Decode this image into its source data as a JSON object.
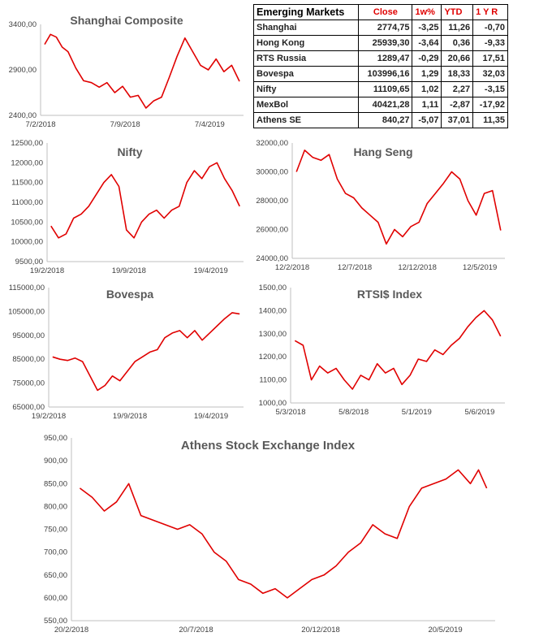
{
  "table": {
    "title": "Emerging Markets",
    "headers": [
      "Close",
      "1w%",
      "YTD",
      "1 Y R"
    ],
    "rows": [
      {
        "name": "Shanghai",
        "close": "2774,75",
        "w1": "-3,25",
        "ytd": "11,26",
        "y1": "-0,70"
      },
      {
        "name": "Hong Kong",
        "close": "25939,30",
        "w1": "-3,64",
        "ytd": "0,36",
        "y1": "-9,33"
      },
      {
        "name": "RTS Russia",
        "close": "1289,47",
        "w1": "-0,29",
        "ytd": "20,66",
        "y1": "17,51"
      },
      {
        "name": "Bovespa",
        "close": "103996,16",
        "w1": "1,29",
        "ytd": "18,33",
        "y1": "32,03"
      },
      {
        "name": "Nifty",
        "close": "11109,65",
        "w1": "1,02",
        "ytd": "2,27",
        "y1": "-3,15"
      },
      {
        "name": "MexBol",
        "close": "40421,28",
        "w1": "1,11",
        "ytd": "-2,87",
        "y1": "-17,92"
      },
      {
        "name": "Athens SE",
        "close": "840,27",
        "w1": "-5,07",
        "ytd": "37,01",
        "y1": "11,35"
      }
    ]
  },
  "colors": {
    "series": "#e00000",
    "axis": "#bfbfbf",
    "title": "#595959"
  },
  "chart_data": [
    {
      "type": "line",
      "title": "Shanghai Composite",
      "ylim": [
        2400,
        3400
      ],
      "yticks": [
        "2400,00",
        "2900,00",
        "3400,00"
      ],
      "xticks": [
        "7/2/2018",
        "7/9/2018",
        "7/4/2019"
      ],
      "series": [
        {
          "x_fraction": [
            0,
            0.03,
            0.06,
            0.09,
            0.12,
            0.16,
            0.2,
            0.24,
            0.28,
            0.32,
            0.36,
            0.4,
            0.44,
            0.48,
            0.52,
            0.56,
            0.6,
            0.64,
            0.68,
            0.72,
            0.76,
            0.8,
            0.84,
            0.88,
            0.92,
            0.96,
            1.0
          ],
          "values": [
            3180,
            3290,
            3260,
            3150,
            3100,
            2920,
            2780,
            2760,
            2710,
            2760,
            2650,
            2720,
            2600,
            2620,
            2480,
            2560,
            2600,
            2820,
            3050,
            3250,
            3100,
            2950,
            2900,
            3020,
            2880,
            2950,
            2774
          ]
        }
      ]
    },
    {
      "type": "line",
      "title": "Nifty",
      "ylim": [
        9500,
        12500
      ],
      "yticks": [
        "9500,00",
        "10000,00",
        "10500,00",
        "11000,00",
        "11500,00",
        "12000,00",
        "12500,00"
      ],
      "xticks": [
        "19/2/2018",
        "19/9/2018",
        "19/4/2019"
      ],
      "series": [
        {
          "x_fraction": [
            0,
            0.04,
            0.08,
            0.12,
            0.16,
            0.2,
            0.24,
            0.28,
            0.32,
            0.36,
            0.4,
            0.44,
            0.48,
            0.52,
            0.56,
            0.6,
            0.64,
            0.68,
            0.72,
            0.76,
            0.8,
            0.84,
            0.88,
            0.92,
            0.96,
            1.0
          ],
          "values": [
            10400,
            10100,
            10200,
            10600,
            10700,
            10900,
            11200,
            11500,
            11700,
            11400,
            10300,
            10100,
            10500,
            10700,
            10800,
            10600,
            10800,
            10900,
            11500,
            11800,
            11600,
            11900,
            12000,
            11600,
            11300,
            10900
          ]
        }
      ]
    },
    {
      "type": "line",
      "title": "Hang Seng",
      "ylim": [
        24000,
        32000
      ],
      "yticks": [
        "24000,00",
        "26000,00",
        "28000,00",
        "30000,00",
        "32000,00"
      ],
      "xticks": [
        "12/2/2018",
        "12/7/2018",
        "12/12/2018",
        "12/5/2019"
      ],
      "series": [
        {
          "x_fraction": [
            0,
            0.04,
            0.08,
            0.12,
            0.16,
            0.2,
            0.24,
            0.28,
            0.32,
            0.36,
            0.4,
            0.44,
            0.48,
            0.52,
            0.56,
            0.6,
            0.64,
            0.68,
            0.72,
            0.76,
            0.8,
            0.84,
            0.88,
            0.92,
            0.96,
            1.0
          ],
          "values": [
            30000,
            31500,
            31000,
            30800,
            31200,
            29500,
            28500,
            28200,
            27500,
            27000,
            26500,
            25000,
            26000,
            25500,
            26200,
            26500,
            27800,
            28500,
            29200,
            30000,
            29500,
            28000,
            27000,
            28500,
            28700,
            25939
          ]
        }
      ]
    },
    {
      "type": "line",
      "title": "Bovespa",
      "ylim": [
        65000,
        115000
      ],
      "yticks": [
        "65000,00",
        "75000,00",
        "85000,00",
        "95000,00",
        "105000,00",
        "115000,00"
      ],
      "xticks": [
        "19/2/2018",
        "19/9/2018",
        "19/4/2019"
      ],
      "series": [
        {
          "x_fraction": [
            0,
            0.04,
            0.08,
            0.12,
            0.16,
            0.2,
            0.24,
            0.28,
            0.32,
            0.36,
            0.4,
            0.44,
            0.48,
            0.52,
            0.56,
            0.6,
            0.64,
            0.68,
            0.72,
            0.76,
            0.8,
            0.84,
            0.88,
            0.92,
            0.96,
            1.0
          ],
          "values": [
            86000,
            85000,
            84500,
            85500,
            84000,
            78000,
            72000,
            74000,
            78000,
            76000,
            80000,
            84000,
            86000,
            88000,
            89000,
            94000,
            96000,
            97000,
            94000,
            97000,
            93000,
            96000,
            99000,
            102000,
            104500,
            103996
          ]
        }
      ]
    },
    {
      "type": "line",
      "title": "RTSI$ Index",
      "ylim": [
        1000,
        1500
      ],
      "yticks": [
        "1000,00",
        "1100,00",
        "1200,00",
        "1300,00",
        "1400,00",
        "1500,00"
      ],
      "xticks": [
        "5/3/2018",
        "5/8/2018",
        "5/1/2019",
        "5/6/2019"
      ],
      "series": [
        {
          "x_fraction": [
            0,
            0.04,
            0.08,
            0.12,
            0.16,
            0.2,
            0.24,
            0.28,
            0.32,
            0.36,
            0.4,
            0.44,
            0.48,
            0.52,
            0.56,
            0.6,
            0.64,
            0.68,
            0.72,
            0.76,
            0.8,
            0.84,
            0.88,
            0.92,
            0.96,
            1.0
          ],
          "values": [
            1270,
            1250,
            1100,
            1160,
            1130,
            1150,
            1100,
            1060,
            1120,
            1100,
            1170,
            1130,
            1150,
            1080,
            1120,
            1190,
            1180,
            1230,
            1210,
            1250,
            1280,
            1330,
            1370,
            1400,
            1360,
            1289
          ]
        }
      ]
    },
    {
      "type": "line",
      "title": "Athens Stock Exchange Index",
      "ylim": [
        550,
        950
      ],
      "yticks": [
        "550,00",
        "600,00",
        "650,00",
        "700,00",
        "750,00",
        "800,00",
        "850,00",
        "900,00",
        "950,00"
      ],
      "xticks": [
        "20/2/2018",
        "20/7/2018",
        "20/12/2018",
        "20/5/2019"
      ],
      "series": [
        {
          "x_fraction": [
            0,
            0.03,
            0.06,
            0.09,
            0.12,
            0.15,
            0.18,
            0.21,
            0.24,
            0.27,
            0.3,
            0.33,
            0.36,
            0.39,
            0.42,
            0.45,
            0.48,
            0.51,
            0.54,
            0.57,
            0.6,
            0.63,
            0.66,
            0.69,
            0.72,
            0.75,
            0.78,
            0.81,
            0.84,
            0.87,
            0.9,
            0.93,
            0.96,
            0.98,
            1.0
          ],
          "values": [
            840,
            820,
            790,
            810,
            850,
            780,
            770,
            760,
            750,
            760,
            740,
            700,
            680,
            640,
            630,
            610,
            620,
            600,
            620,
            640,
            650,
            670,
            700,
            720,
            760,
            740,
            730,
            800,
            840,
            850,
            860,
            880,
            850,
            880,
            840
          ]
        }
      ]
    }
  ]
}
